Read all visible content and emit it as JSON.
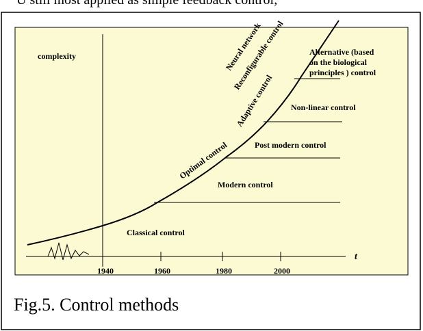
{
  "header_text": "U still most applied as simple feedback control;",
  "figure": {
    "y_axis_label": "complexity",
    "x_axis_label": "t",
    "years": [
      "1940",
      "1960",
      "1980",
      "2000"
    ],
    "eras": [
      "Classical control",
      "Modern control",
      "Post modern control",
      "Non-linear control"
    ],
    "alternative": [
      "Alternative (based",
      "on the biological",
      "principles ) control"
    ],
    "curve_labels": [
      "Optimal control",
      "Adaptive control",
      "Reconfigurable control",
      "Neural network"
    ]
  },
  "caption": "Fig.5. Control methods"
}
